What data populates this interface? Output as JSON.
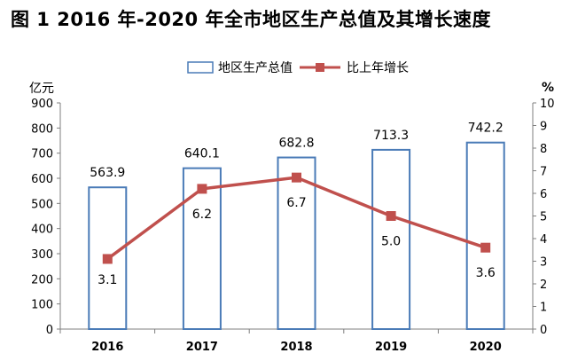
{
  "title": "图 1    2016 年-2020 年全市地区生产总值及其增长速度",
  "chart_data": {
    "type": "bar+line",
    "categories": [
      "2016",
      "2017",
      "2018",
      "2019",
      "2020"
    ],
    "series": [
      {
        "name": "地区生产总值",
        "type": "bar",
        "axis": "left",
        "values": [
          563.9,
          640.1,
          682.8,
          713.3,
          742.2
        ],
        "labels": [
          "563.9",
          "640.1",
          "682.8",
          "713.3",
          "742.2"
        ],
        "color": "#4a7bb7"
      },
      {
        "name": "比上年增长",
        "type": "line",
        "axis": "right",
        "values": [
          3.1,
          6.2,
          6.7,
          5.0,
          3.6
        ],
        "labels": [
          "3.1",
          "6.2",
          "6.7",
          "5.0",
          "3.6"
        ],
        "color": "#c0504d"
      }
    ],
    "ylabel_left": "亿元",
    "ylabel_right": "%",
    "ylim_left": [
      0,
      900
    ],
    "yticks_left": [
      0,
      100,
      200,
      300,
      400,
      500,
      600,
      700,
      800,
      900
    ],
    "ylim_right": [
      0,
      10
    ],
    "yticks_right": [
      0,
      1,
      2,
      3,
      4,
      5,
      6,
      7,
      8,
      9,
      10
    ],
    "legend_position": "top-center",
    "grid": false
  }
}
